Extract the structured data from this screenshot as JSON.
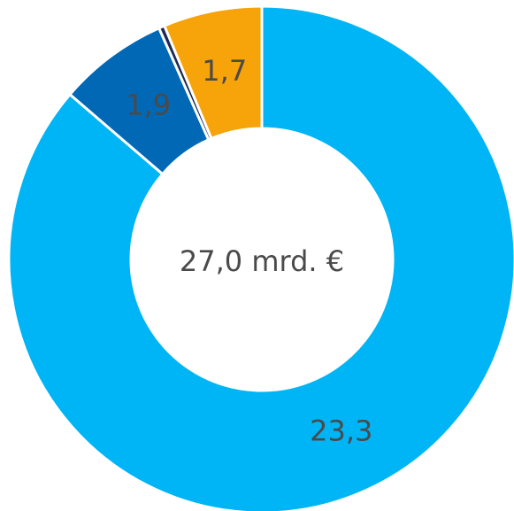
{
  "chart_data": {
    "type": "pie",
    "values": [
      23.3,
      1.9,
      0.1,
      1.7
    ],
    "value_labels": [
      "23,3",
      "1,9",
      null,
      "1,7"
    ],
    "colors": [
      "#00b5f5",
      "#0068b5",
      "#1b2a55",
      "#f7a30a"
    ],
    "center_label": "27,0 mrd. €"
  }
}
